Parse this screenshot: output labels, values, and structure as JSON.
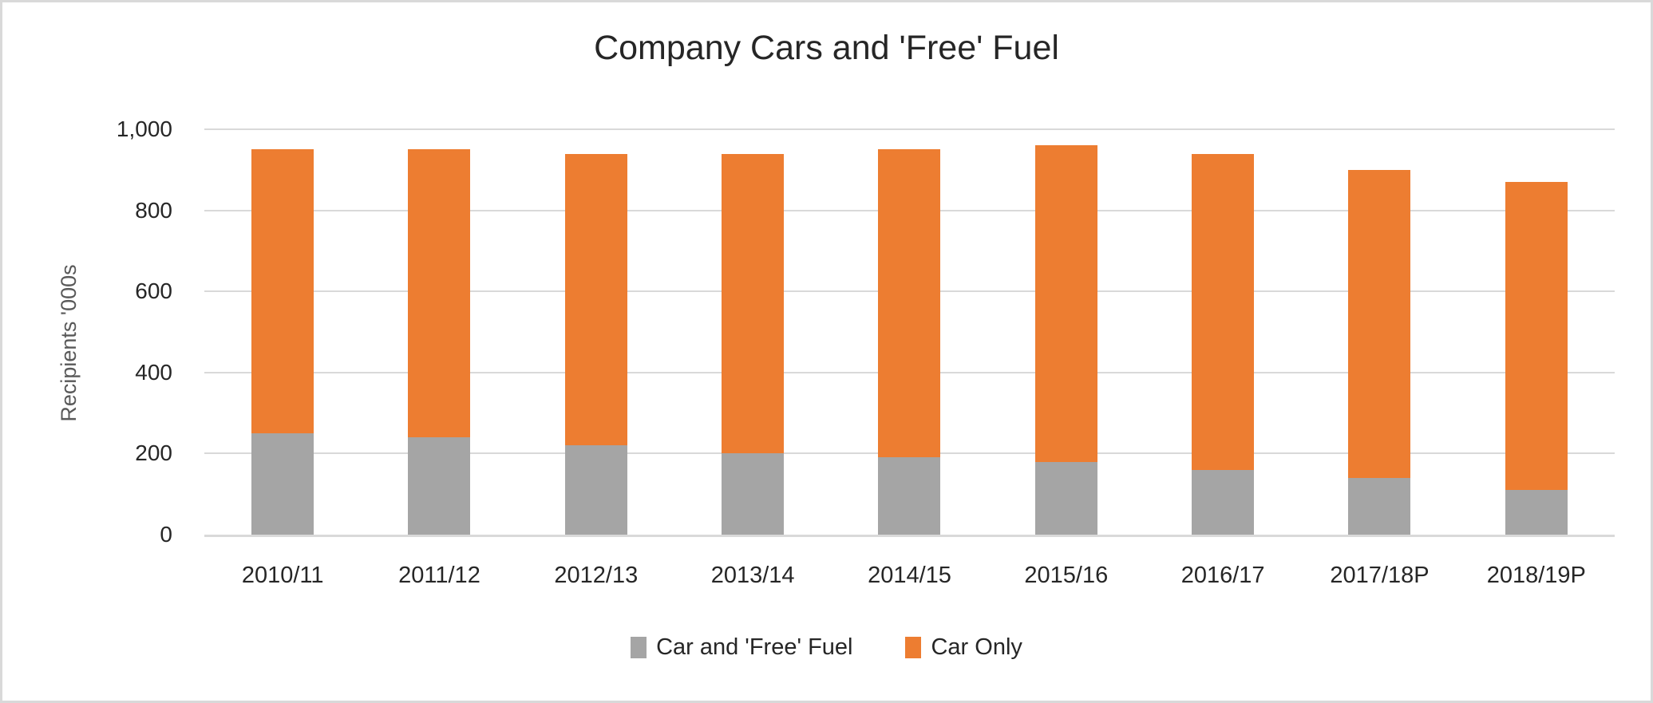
{
  "chart_data": {
    "type": "bar",
    "stacked": true,
    "title": "Company Cars and 'Free' Fuel",
    "ylabel": "Recipients '000s",
    "xlabel": "",
    "categories": [
      "2010/11",
      "2011/12",
      "2012/13",
      "2013/14",
      "2014/15",
      "2015/16",
      "2016/17",
      "2017/18P",
      "2018/19P"
    ],
    "series": [
      {
        "name": "Car and 'Free' Fuel",
        "color": "#A5A5A5",
        "values": [
          250,
          240,
          220,
          200,
          190,
          180,
          160,
          140,
          110
        ]
      },
      {
        "name": "Car Only",
        "color": "#ED7D31",
        "values": [
          700,
          710,
          720,
          740,
          760,
          780,
          780,
          760,
          760
        ]
      }
    ],
    "stack_totals": [
      950,
      950,
      940,
      940,
      950,
      960,
      940,
      900,
      870
    ],
    "ylim": [
      0,
      1000
    ],
    "ytick_step": 200,
    "yticks": [
      "0",
      "200",
      "400",
      "600",
      "800",
      "1,000"
    ],
    "grid": true,
    "legend_position": "bottom",
    "colors": {
      "frame": "#D9D9D9",
      "grid": "#D9D9D9",
      "axis_line": "#D9D9D9",
      "title_text": "#262626",
      "tick_text": "#262626",
      "ylabel_text": "#595959",
      "background": "#FFFFFF"
    }
  }
}
